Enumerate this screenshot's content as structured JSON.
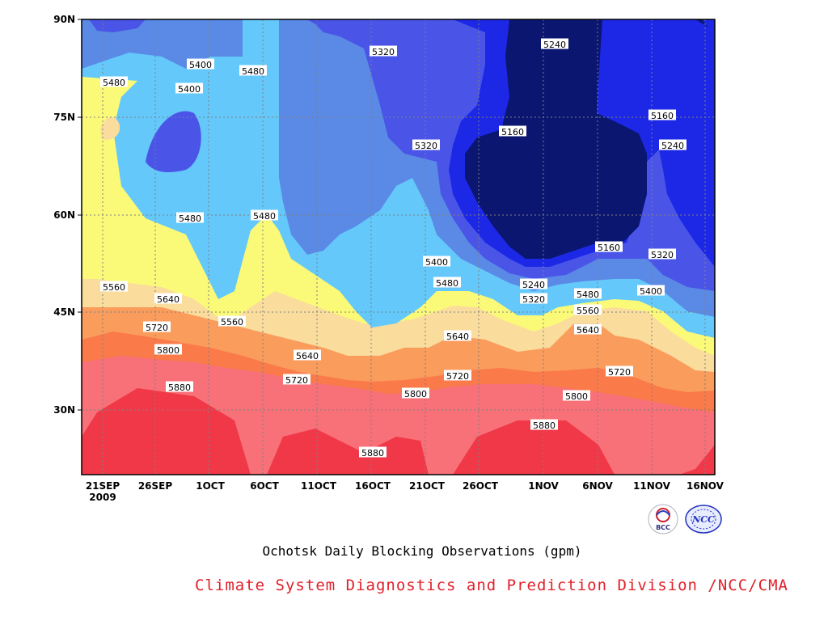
{
  "chart_data": {
    "type": "contour",
    "title": "Ochotsk Daily Blocking Observations (gpm)",
    "credit": "Climate System Diagnostics and Prediction Division /NCC/CMA",
    "x_ticks": [
      "21SEP",
      "26SEP",
      "1OCT",
      "6OCT",
      "11OCT",
      "16OCT",
      "21OCT",
      "26OCT",
      "1NOV",
      "6NOV",
      "11NOV",
      "16NOV"
    ],
    "x_year": "2009",
    "y_ticks": [
      "90N",
      "75N",
      "60N",
      "45N",
      "30N"
    ],
    "y_tick_values": [
      90,
      75,
      60,
      45,
      30
    ],
    "ylim": [
      20,
      90
    ],
    "grid": true,
    "levels": [
      5160,
      5240,
      5320,
      5400,
      5480,
      5560,
      5640,
      5720,
      5800,
      5880
    ],
    "colors": {
      "below_5160": "#0a1670",
      "5160_5240": "#1c28e6",
      "5240_5320": "#4a55e8",
      "5320_5400": "#5a8ae6",
      "5400_5480": "#64c8fa",
      "5480_5560": "#fafa78",
      "5560_5640": "#fadc9c",
      "5640_5720": "#fa9c5c",
      "5720_5800": "#fa7a4a",
      "5800_5880": "#f87078",
      "above_5880": "#f03848"
    },
    "contour_labels": [
      "5240",
      "5320",
      "5400",
      "5400",
      "5480",
      "5480",
      "5160",
      "5160",
      "5240",
      "5320",
      "5480",
      "5480",
      "5160",
      "5320",
      "5400",
      "5480",
      "5240",
      "5320",
      "5400",
      "5560",
      "5480",
      "5560",
      "5640",
      "5640",
      "5720",
      "5560",
      "5640",
      "5800",
      "5640",
      "5720",
      "5720",
      "5720",
      "5880",
      "5800",
      "5800",
      "5880",
      "5880"
    ]
  },
  "logos": {
    "left": "BCC",
    "right": "NCC"
  }
}
